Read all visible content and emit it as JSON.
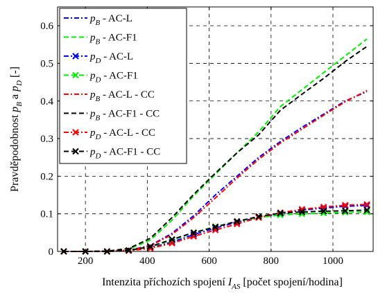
{
  "chart_data": {
    "type": "line",
    "xlabel": {
      "prefix": "Intenzita příchozích spojení ",
      "symbol": "I",
      "sub": "AS",
      "suffix": " [počet spojení/hodina]"
    },
    "ylabel": {
      "prefix": "Pravděpodobnost ",
      "s1": "p",
      "sub1": "B",
      "mid": " a ",
      "s2": "p",
      "sub2": "D",
      "suffix": " [-]"
    },
    "xlim": [
      110,
      1130
    ],
    "ylim": [
      0,
      0.65
    ],
    "xticks": [
      200,
      400,
      600,
      800,
      1000
    ],
    "yticks": [
      0,
      0.1,
      0.2,
      0.3,
      0.4,
      0.5,
      0.6
    ],
    "xtick_labels": [
      "200",
      "400",
      "600",
      "800",
      "1000"
    ],
    "ytick_labels": [
      "0",
      "0.1",
      "0.2",
      "0.3",
      "0.4",
      "0.5",
      "0.6"
    ],
    "grid": true,
    "legend_position": "top-left",
    "series": [
      {
        "sym": "p",
        "sub": "B",
        "label": " - AC-L",
        "color": "#0000ff",
        "dash": "dashdot",
        "marker": "none",
        "x": [
          130,
          200,
          270,
          340,
          410,
          480,
          550,
          620,
          690,
          760,
          830,
          900,
          970,
          1040,
          1110
        ],
        "y": [
          0,
          0,
          0.001,
          0.003,
          0.016,
          0.048,
          0.095,
          0.15,
          0.2,
          0.25,
          0.292,
          0.33,
          0.365,
          0.4,
          0.425
        ]
      },
      {
        "sym": "p",
        "sub": "B",
        "label": " - AC-F1",
        "color": "#00ee00",
        "dash": "dashed",
        "marker": "none",
        "x": [
          130,
          200,
          270,
          340,
          410,
          480,
          550,
          620,
          690,
          760,
          830,
          900,
          970,
          1040,
          1110
        ],
        "y": [
          0,
          0,
          0.001,
          0.006,
          0.03,
          0.083,
          0.148,
          0.205,
          0.262,
          0.318,
          0.385,
          0.43,
          0.475,
          0.52,
          0.565
        ]
      },
      {
        "sym": "p",
        "sub": "D",
        "label": " - AC-L",
        "color": "#0000ff",
        "dash": "dashdot",
        "marker": "x",
        "x": [
          130,
          200,
          270,
          340,
          410,
          480,
          550,
          620,
          690,
          760,
          830,
          900,
          970,
          1040,
          1110
        ],
        "y": [
          0,
          0,
          0,
          0.002,
          0.01,
          0.025,
          0.045,
          0.062,
          0.078,
          0.09,
          0.1,
          0.11,
          0.115,
          0.12,
          0.122
        ]
      },
      {
        "sym": "p",
        "sub": "D",
        "label": " - AC-F1",
        "color": "#00ee00",
        "dash": "dashed",
        "marker": "x",
        "x": [
          130,
          200,
          270,
          340,
          410,
          480,
          550,
          620,
          690,
          760,
          830,
          900,
          970,
          1040,
          1110
        ],
        "y": [
          0,
          0,
          0,
          0.002,
          0.012,
          0.03,
          0.05,
          0.066,
          0.08,
          0.09,
          0.097,
          0.1,
          0.102,
          0.104,
          0.105
        ]
      },
      {
        "sym": "p",
        "sub": "B",
        "label": " - AC-L   - CC",
        "color": "#ff0000",
        "dash": "dashdot",
        "marker": "none",
        "x": [
          130,
          200,
          270,
          340,
          410,
          480,
          550,
          620,
          690,
          760,
          830,
          900,
          970,
          1040,
          1110
        ],
        "y": [
          0,
          0,
          0.001,
          0.003,
          0.015,
          0.045,
          0.09,
          0.142,
          0.195,
          0.245,
          0.288,
          0.325,
          0.362,
          0.398,
          0.428
        ]
      },
      {
        "sym": "p",
        "sub": "B",
        "label": " - AC-F1 - CC",
        "color": "#000000",
        "dash": "dashed",
        "marker": "none",
        "x": [
          130,
          200,
          270,
          340,
          410,
          480,
          550,
          620,
          690,
          760,
          830,
          900,
          970,
          1040,
          1110
        ],
        "y": [
          0,
          0,
          0.001,
          0.008,
          0.035,
          0.09,
          0.152,
          0.208,
          0.262,
          0.31,
          0.375,
          0.418,
          0.46,
          0.505,
          0.545
        ]
      },
      {
        "sym": "p",
        "sub": "D",
        "label": " - AC-L   - CC",
        "color": "#ff0000",
        "dash": "dashdot",
        "marker": "x",
        "x": [
          130,
          200,
          270,
          340,
          410,
          480,
          550,
          620,
          690,
          760,
          830,
          900,
          970,
          1040,
          1110
        ],
        "y": [
          0,
          0,
          0,
          0.002,
          0.008,
          0.022,
          0.04,
          0.057,
          0.073,
          0.09,
          0.103,
          0.112,
          0.118,
          0.123,
          0.125
        ]
      },
      {
        "sym": "p",
        "sub": "D",
        "label": " - AC-F1 - CC",
        "color": "#000000",
        "dash": "dashed",
        "marker": "x",
        "x": [
          130,
          200,
          270,
          340,
          410,
          480,
          550,
          620,
          690,
          760,
          830,
          900,
          970,
          1040,
          1110
        ],
        "y": [
          0,
          0,
          0,
          0.003,
          0.013,
          0.032,
          0.05,
          0.065,
          0.08,
          0.093,
          0.102,
          0.105,
          0.107,
          0.108,
          0.11
        ]
      }
    ]
  }
}
